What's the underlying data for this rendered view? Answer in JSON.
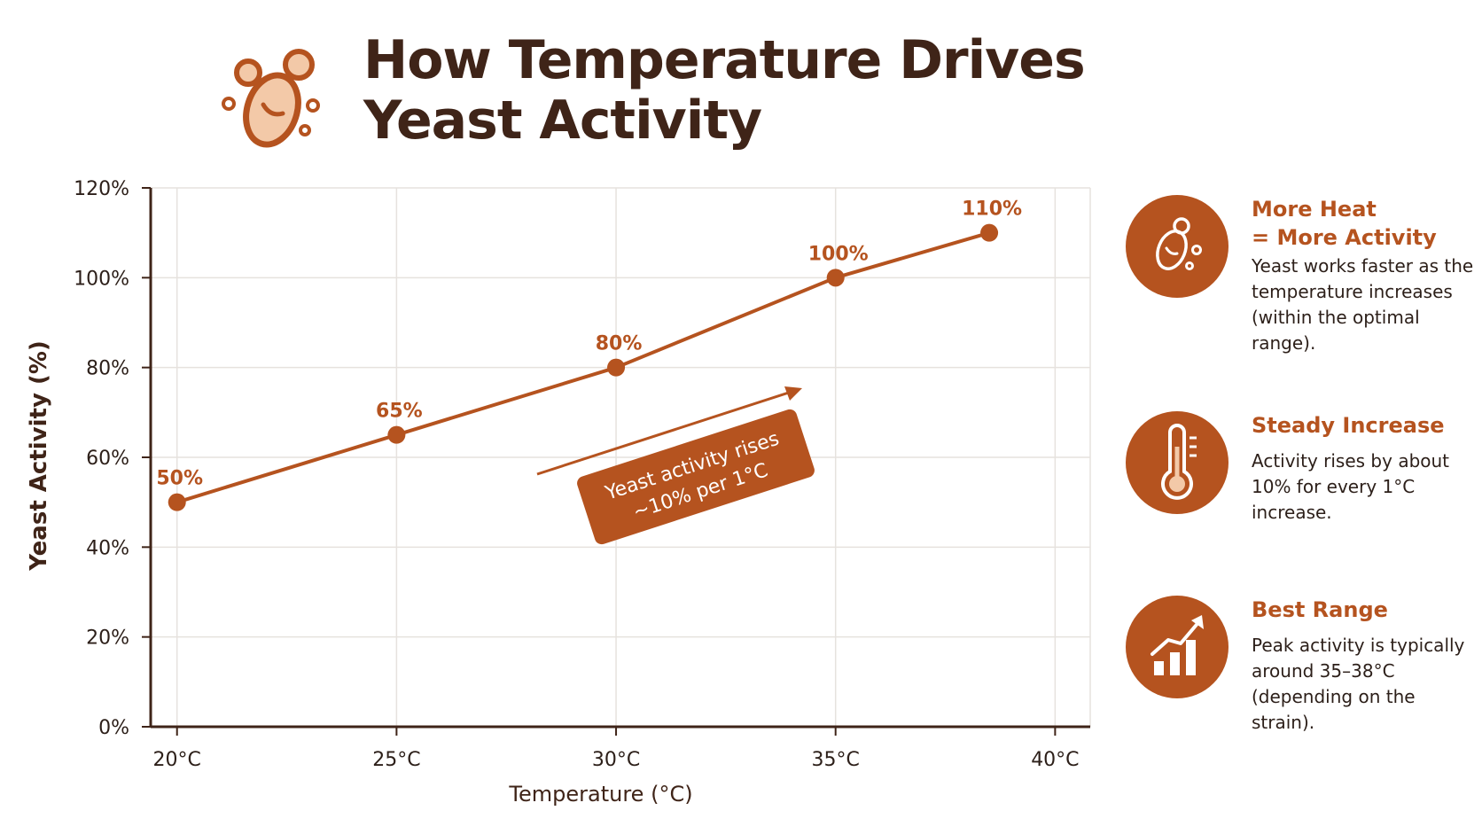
{
  "title": {
    "line1": "How Temperature Drives",
    "line2": "Yeast Activity",
    "logo_icon": "yeast-cells-icon"
  },
  "colors": {
    "accent": "#b5531f",
    "title": "#3f2418",
    "axis": "#3f2418",
    "grid": "#e6e2de",
    "text": "#2c1f19",
    "logo_fill": "#f3c9a8"
  },
  "chart_data": {
    "type": "line",
    "title": "",
    "xlabel": "Temperature (°C)",
    "ylabel": "Yeast Activity (%)",
    "x_ticks": [
      "20°C",
      "25°C",
      "30°C",
      "35°C",
      "40°C"
    ],
    "x_tick_values": [
      20,
      25,
      30,
      35,
      40
    ],
    "y_ticks": [
      "0%",
      "20%",
      "40%",
      "60%",
      "80%",
      "100%",
      "120%"
    ],
    "y_tick_values": [
      0,
      20,
      40,
      60,
      80,
      100,
      120
    ],
    "xlim": [
      19.4,
      40.8
    ],
    "ylim": [
      0,
      120
    ],
    "grid": true,
    "series": [
      {
        "x": [
          20,
          25,
          30,
          35,
          38.5
        ],
        "values": [
          50,
          65,
          80,
          100,
          110
        ],
        "labels": [
          "50%",
          "65%",
          "80%",
          "100%",
          "110%"
        ]
      }
    ],
    "annotation": {
      "line1": "Yeast activity rises",
      "line2": "~10% per 1°C"
    }
  },
  "cards": [
    {
      "icon": "yeast-cells-icon",
      "title": "More Heat\n= More Activity",
      "text": "Yeast works faster as the temperature increases (within the optimal range)."
    },
    {
      "icon": "thermometer-icon",
      "title": "Steady Increase",
      "text": "Activity rises by about 10% for every 1°C increase."
    },
    {
      "icon": "bar-chart-trend-icon",
      "title": "Best Range",
      "text": "Peak activity is typically around 35–38°C (depending on the strain)."
    }
  ]
}
